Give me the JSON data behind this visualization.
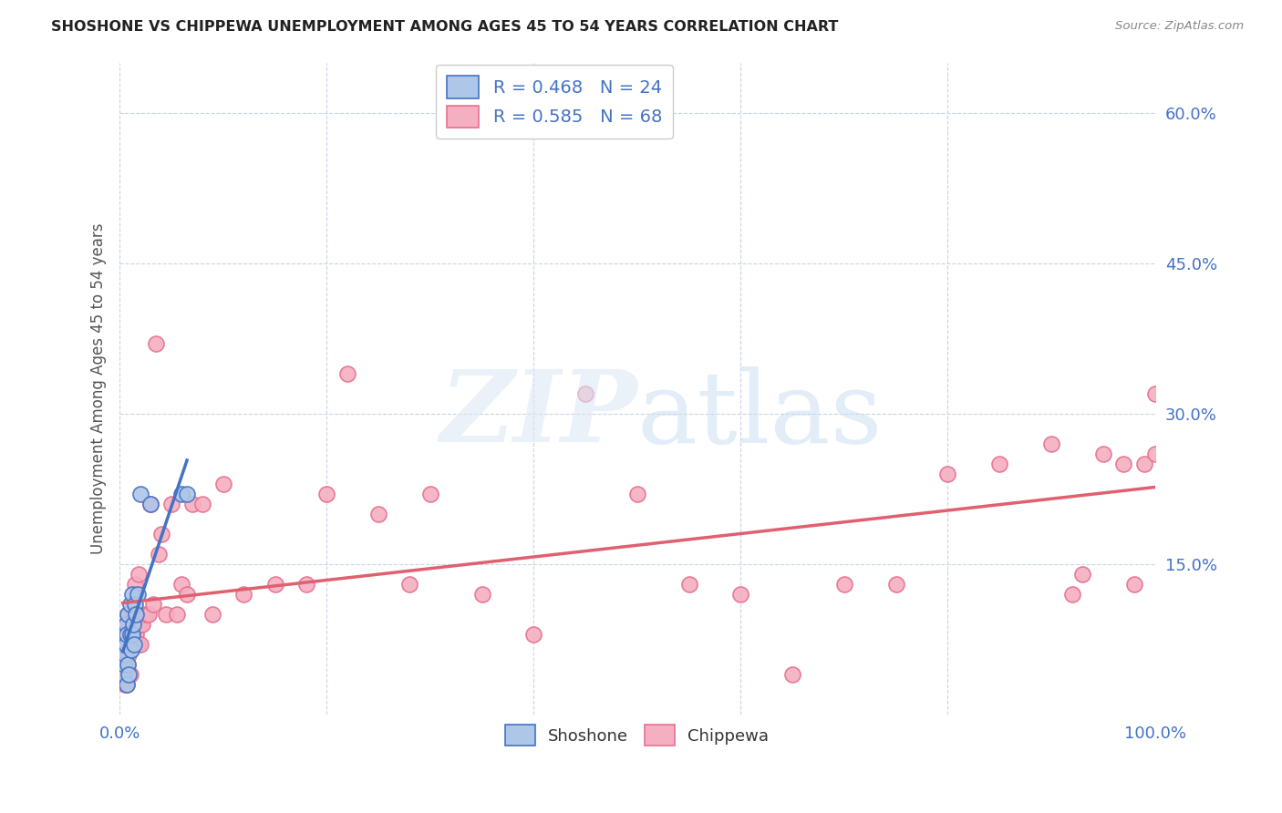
{
  "title": "SHOSHONE VS CHIPPEWA UNEMPLOYMENT AMONG AGES 45 TO 54 YEARS CORRELATION CHART",
  "source": "Source: ZipAtlas.com",
  "ylabel": "Unemployment Among Ages 45 to 54 years",
  "xlim": [
    0.0,
    1.0
  ],
  "ylim": [
    0.0,
    0.65
  ],
  "x_tick_positions": [
    0.0,
    0.2,
    0.4,
    0.6,
    0.8,
    1.0
  ],
  "x_tick_labels_show": [
    "0.0%",
    "100.0%"
  ],
  "x_tick_show_pos": [
    0.0,
    1.0
  ],
  "y_tick_labels": [
    "15.0%",
    "30.0%",
    "45.0%",
    "60.0%"
  ],
  "y_tick_values": [
    0.15,
    0.3,
    0.45,
    0.6
  ],
  "shoshone_color": "#aec6e8",
  "chippewa_color": "#f4afc0",
  "shoshone_edge_color": "#4472c4",
  "chippewa_edge_color": "#e87090",
  "shoshone_line_color": "#4472c4",
  "chippewa_line_color": "#e06070",
  "shoshone_R": 0.468,
  "shoshone_N": 24,
  "chippewa_R": 0.585,
  "chippewa_N": 68,
  "background_color": "#ffffff",
  "grid_color": "#c8d4e8",
  "title_color": "#222222",
  "source_color": "#888888",
  "tick_color": "#4472c4",
  "ylabel_color": "#555555",
  "shoshone_x": [
    0.003,
    0.004,
    0.005,
    0.006,
    0.006,
    0.007,
    0.007,
    0.008,
    0.008,
    0.009,
    0.01,
    0.01,
    0.011,
    0.012,
    0.012,
    0.013,
    0.014,
    0.015,
    0.016,
    0.017,
    0.02,
    0.03,
    0.06,
    0.065
  ],
  "shoshone_y": [
    0.04,
    0.05,
    0.06,
    0.07,
    0.09,
    0.03,
    0.08,
    0.05,
    0.1,
    0.04,
    0.08,
    0.11,
    0.065,
    0.12,
    0.08,
    0.09,
    0.07,
    0.11,
    0.1,
    0.12,
    0.22,
    0.21,
    0.22,
    0.22
  ],
  "chippewa_x": [
    0.003,
    0.004,
    0.005,
    0.005,
    0.006,
    0.006,
    0.007,
    0.007,
    0.008,
    0.008,
    0.009,
    0.01,
    0.01,
    0.011,
    0.012,
    0.013,
    0.014,
    0.015,
    0.016,
    0.017,
    0.018,
    0.019,
    0.02,
    0.022,
    0.025,
    0.028,
    0.03,
    0.032,
    0.035,
    0.038,
    0.04,
    0.045,
    0.05,
    0.055,
    0.06,
    0.065,
    0.07,
    0.08,
    0.09,
    0.1,
    0.12,
    0.15,
    0.18,
    0.2,
    0.22,
    0.25,
    0.28,
    0.3,
    0.35,
    0.4,
    0.45,
    0.5,
    0.55,
    0.6,
    0.65,
    0.7,
    0.75,
    0.8,
    0.85,
    0.9,
    0.92,
    0.93,
    0.95,
    0.97,
    0.98,
    0.99,
    1.0,
    1.0
  ],
  "chippewa_y": [
    0.04,
    0.05,
    0.03,
    0.07,
    0.04,
    0.09,
    0.03,
    0.06,
    0.05,
    0.1,
    0.06,
    0.04,
    0.08,
    0.07,
    0.09,
    0.1,
    0.07,
    0.13,
    0.08,
    0.07,
    0.14,
    0.09,
    0.07,
    0.09,
    0.1,
    0.1,
    0.21,
    0.11,
    0.37,
    0.16,
    0.18,
    0.1,
    0.21,
    0.1,
    0.13,
    0.12,
    0.21,
    0.21,
    0.1,
    0.23,
    0.12,
    0.13,
    0.13,
    0.22,
    0.34,
    0.2,
    0.13,
    0.22,
    0.12,
    0.08,
    0.32,
    0.22,
    0.13,
    0.12,
    0.04,
    0.13,
    0.13,
    0.24,
    0.25,
    0.27,
    0.12,
    0.14,
    0.26,
    0.25,
    0.13,
    0.25,
    0.32,
    0.26
  ]
}
